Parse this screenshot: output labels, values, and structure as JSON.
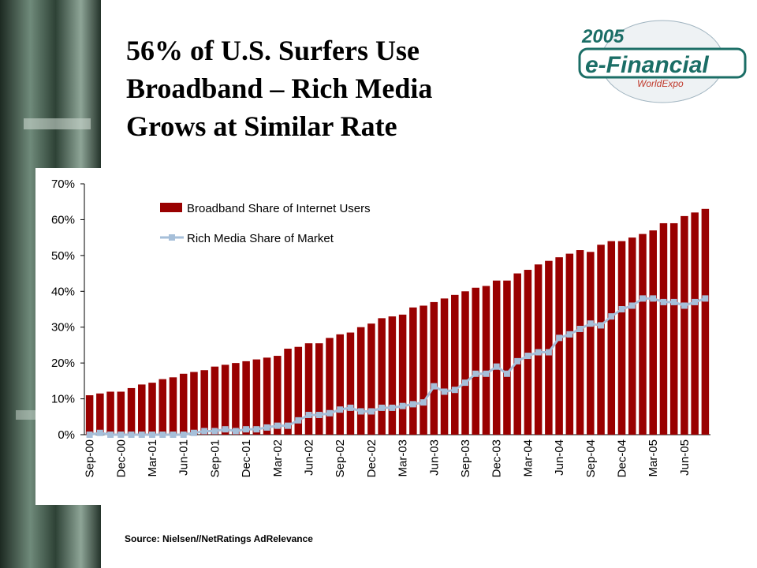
{
  "title_lines": [
    "56% of U.S. Surfers Use",
    "Broadband – Rich Media",
    "Grows at Similar Rate"
  ],
  "logo": {
    "year": "2005",
    "name": "e-Financial",
    "sub": "WorldExpo"
  },
  "source": "Source: Nielsen//NetRatings AdRelevance",
  "chart_data": {
    "type": "bar",
    "categories": [
      "Sep-00",
      null,
      null,
      "Dec-00",
      null,
      null,
      "Mar-01",
      null,
      null,
      "Jun-01",
      null,
      null,
      "Sep-01",
      null,
      null,
      "Dec-01",
      null,
      null,
      "Mar-02",
      null,
      null,
      "Jun-02",
      null,
      null,
      "Sep-02",
      null,
      null,
      "Dec-02",
      null,
      null,
      "Mar-03",
      null,
      null,
      "Jun-03",
      null,
      null,
      "Sep-03",
      null,
      null,
      "Dec-03",
      null,
      null,
      "Mar-04",
      null,
      null,
      "Jun-04",
      null,
      null,
      "Sep-04",
      null,
      null,
      "Dec-04",
      null,
      null,
      "Mar-05",
      null,
      null,
      "Jun-05",
      null,
      null
    ],
    "series": [
      {
        "name": "Broadband Share of Internet Users",
        "type": "bar",
        "color": "#990000",
        "values": [
          11,
          11.5,
          12,
          12,
          13,
          14,
          14.5,
          15.5,
          16,
          17,
          17.5,
          18,
          19,
          19.5,
          20,
          20.5,
          21,
          21.5,
          22,
          24,
          24.5,
          25.5,
          25.5,
          27,
          28,
          28.5,
          30,
          31,
          32.5,
          33,
          33.5,
          35.5,
          36,
          37,
          38,
          39,
          40,
          41,
          41.5,
          43,
          43,
          45,
          46,
          47.5,
          48.5,
          49.5,
          50.5,
          51.5,
          51,
          53,
          54,
          54,
          55,
          56,
          57,
          59,
          59,
          61,
          62,
          63
        ]
      },
      {
        "name": "Rich Media Share of Market",
        "type": "line",
        "color": "#a6bfd9",
        "values": [
          0,
          0.5,
          0,
          0,
          0,
          0,
          0,
          0,
          0,
          0,
          0.5,
          1,
          1,
          1.5,
          1,
          1.5,
          1.5,
          2,
          2.5,
          2.5,
          4,
          5.5,
          5.5,
          6,
          7,
          7.5,
          6.5,
          6.5,
          7.5,
          7.5,
          8,
          8.5,
          9,
          13.5,
          12,
          12.5,
          14.5,
          17,
          17,
          19,
          17,
          20.5,
          22,
          23,
          23,
          27,
          28,
          29.5,
          31,
          30.5,
          33,
          35,
          36,
          38,
          38,
          37,
          37,
          36,
          37,
          38
        ]
      }
    ],
    "ylim": [
      0,
      70
    ],
    "yticks": [
      {
        "value": 0,
        "label": "0%"
      },
      {
        "value": 10,
        "label": "10%"
      },
      {
        "value": 20,
        "label": "20%"
      },
      {
        "value": 30,
        "label": "30%"
      },
      {
        "value": 40,
        "label": "40%"
      },
      {
        "value": 50,
        "label": "50%"
      },
      {
        "value": 60,
        "label": "60%"
      },
      {
        "value": 70,
        "label": "70%"
      }
    ],
    "legend": "upper-left"
  }
}
